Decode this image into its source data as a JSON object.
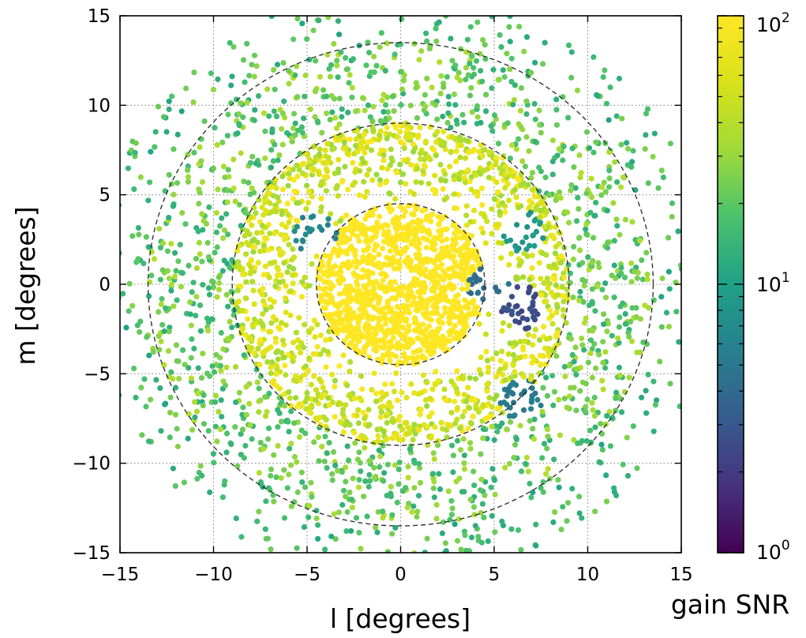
{
  "chart_data": {
    "type": "scatter",
    "xlabel": "l [degrees]",
    "ylabel": "m [degrees]",
    "xlim": [
      -15,
      15
    ],
    "ylim": [
      -15,
      15
    ],
    "xticks": [
      "−15",
      "−10",
      "−5",
      "0",
      "5",
      "10",
      "15"
    ],
    "yticks": [
      "−15",
      "−10",
      "−5",
      "0",
      "5",
      "10",
      "15"
    ],
    "x_tick_values": [
      -15,
      -10,
      -5,
      0,
      5,
      10,
      15
    ],
    "y_tick_values": [
      -15,
      -10,
      -5,
      0,
      5,
      10,
      15
    ],
    "grid": true,
    "colormap": "viridis",
    "color_scale": "log",
    "colorbar": {
      "label": "gain SNR",
      "range": [
        1,
        100
      ],
      "ticks": [
        {
          "base": "10",
          "exp": "2",
          "value": 100
        },
        {
          "base": "10",
          "exp": "1",
          "value": 10
        },
        {
          "base": "10",
          "exp": "0",
          "value": 1
        }
      ]
    },
    "dashed_circles_radius_deg": [
      4.5,
      9.0,
      13.5
    ],
    "point_count": 4000,
    "regions": [
      {
        "description": "central disk",
        "radius_deg": [
          0,
          4.5
        ],
        "snr": 100
      },
      {
        "description": "middle ring",
        "radius_deg": [
          4.5,
          9.0
        ],
        "snr_range": [
          30,
          100
        ]
      },
      {
        "description": "outer ring",
        "radius_deg": [
          9.0,
          13.5
        ],
        "snr_range": [
          12,
          40
        ]
      },
      {
        "description": "outer sparse",
        "radius_deg": [
          13.5,
          15.5
        ],
        "snr_range": [
          10,
          30
        ]
      },
      {
        "description": "low-SNR cluster",
        "center": [
          6.5,
          -1.3
        ],
        "snr": 2.5
      },
      {
        "description": "low-SNR cluster",
        "center": [
          4.8,
          -0.1
        ],
        "snr": 4
      },
      {
        "description": "low-SNR cluster",
        "center": [
          -4.5,
          2.8
        ],
        "snr": 6
      },
      {
        "description": "low-SNR cluster",
        "center": [
          6.5,
          -6.5
        ],
        "snr": 5
      },
      {
        "description": "low-SNR cluster",
        "center": [
          6.5,
          3.0
        ],
        "snr": 8
      }
    ]
  }
}
